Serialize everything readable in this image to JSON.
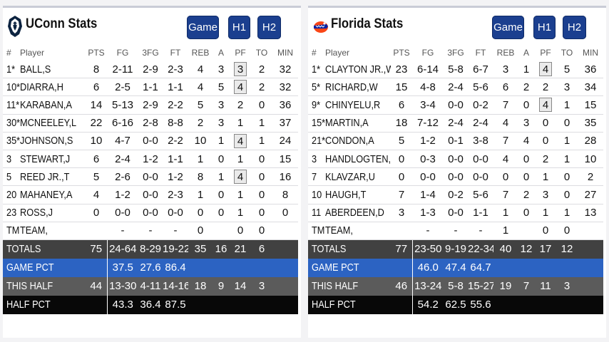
{
  "columns": [
    "#",
    "Player",
    "PTS",
    "FG",
    "3FG",
    "FT",
    "REB",
    "A",
    "PF",
    "TO",
    "MIN"
  ],
  "buttons": {
    "game": "Game",
    "h1": "H1",
    "h2": "H2"
  },
  "colors": {
    "button_blue": "#1b3f8f",
    "game_pct_bar": "#2c63c2",
    "totals_bar": "#414141",
    "this_half_bar": "#5b5b5b",
    "half_pct_bar": "#080808"
  },
  "left": {
    "title": "UConn Stats",
    "logo_icon": "husky-logo-icon",
    "players": [
      {
        "num": "1*",
        "name": "BALL,S",
        "pts": "8",
        "fg": "2-11",
        "tfg": "2-9",
        "ft": "2-3",
        "reb": "4",
        "a": "3",
        "pf": "3",
        "to": "2",
        "min": "32",
        "pf_boxed": true
      },
      {
        "num": "10*",
        "name": "DIARRA,H",
        "pts": "6",
        "fg": "2-5",
        "tfg": "1-1",
        "ft": "1-1",
        "reb": "4",
        "a": "5",
        "pf": "4",
        "to": "2",
        "min": "32",
        "pf_boxed": true
      },
      {
        "num": "11*",
        "name": "KARABAN,A",
        "pts": "14",
        "fg": "5-13",
        "tfg": "2-9",
        "ft": "2-2",
        "reb": "5",
        "a": "3",
        "pf": "2",
        "to": "0",
        "min": "36",
        "pf_boxed": false
      },
      {
        "num": "30*",
        "name": "MCNEELEY,L",
        "pts": "22",
        "fg": "6-16",
        "tfg": "2-8",
        "ft": "8-8",
        "reb": "2",
        "a": "3",
        "pf": "1",
        "to": "1",
        "min": "37",
        "pf_boxed": false
      },
      {
        "num": "35*",
        "name": "JOHNSON,S",
        "pts": "10",
        "fg": "4-7",
        "tfg": "0-0",
        "ft": "2-2",
        "reb": "10",
        "a": "1",
        "pf": "4",
        "to": "1",
        "min": "24",
        "pf_boxed": true
      },
      {
        "num": "3",
        "name": "STEWART,J",
        "pts": "6",
        "fg": "2-4",
        "tfg": "1-2",
        "ft": "1-1",
        "reb": "1",
        "a": "0",
        "pf": "1",
        "to": "0",
        "min": "15",
        "pf_boxed": false
      },
      {
        "num": "5",
        "name": "REED JR.,T",
        "pts": "5",
        "fg": "2-6",
        "tfg": "0-0",
        "ft": "1-2",
        "reb": "8",
        "a": "1",
        "pf": "4",
        "to": "0",
        "min": "16",
        "pf_boxed": true
      },
      {
        "num": "20",
        "name": "MAHANEY,A",
        "pts": "4",
        "fg": "1-2",
        "tfg": "0-0",
        "ft": "2-3",
        "reb": "1",
        "a": "0",
        "pf": "1",
        "to": "0",
        "min": "8",
        "pf_boxed": false
      },
      {
        "num": "23",
        "name": "ROSS,J",
        "pts": "0",
        "fg": "0-0",
        "tfg": "0-0",
        "ft": "0-0",
        "reb": "0",
        "a": "0",
        "pf": "1",
        "to": "0",
        "min": "0",
        "pf_boxed": false
      },
      {
        "num": "TM",
        "name": "TEAM,",
        "pts": "",
        "fg": "-",
        "tfg": "-",
        "ft": "-",
        "reb": "0",
        "a": "",
        "pf": "0",
        "to": "0",
        "min": "",
        "pf_boxed": false
      }
    ],
    "totals": {
      "label": "TOTALS",
      "pts": "75",
      "fg": "24-64",
      "tfg": "8-29",
      "ft": "19-22",
      "reb": "35",
      "a": "16",
      "pf": "21",
      "to": "6",
      "min": ""
    },
    "game_pct": {
      "label": "GAME PCT",
      "fg": "37.5",
      "tfg": "27.6",
      "ft": "86.4"
    },
    "this_half": {
      "label": "THIS HALF",
      "pts": "44",
      "fg": "13-30",
      "tfg": "4-11",
      "ft": "14-16",
      "reb": "18",
      "a": "9",
      "pf": "14",
      "to": "3",
      "min": ""
    },
    "half_pct": {
      "label": "HALF PCT",
      "fg": "43.3",
      "tfg": "36.4",
      "ft": "87.5"
    }
  },
  "right": {
    "title": "Florida Stats",
    "logo_icon": "gator-logo-icon",
    "players": [
      {
        "num": "1*",
        "name": "CLAYTON JR.,W",
        "pts": "23",
        "fg": "6-14",
        "tfg": "5-8",
        "ft": "6-7",
        "reb": "3",
        "a": "1",
        "pf": "4",
        "to": "5",
        "min": "36",
        "pf_boxed": true
      },
      {
        "num": "5*",
        "name": "RICHARD,W",
        "pts": "15",
        "fg": "4-8",
        "tfg": "2-4",
        "ft": "5-6",
        "reb": "6",
        "a": "2",
        "pf": "2",
        "to": "3",
        "min": "34",
        "pf_boxed": false
      },
      {
        "num": "9*",
        "name": "CHINYELU,R",
        "pts": "6",
        "fg": "3-4",
        "tfg": "0-0",
        "ft": "0-2",
        "reb": "7",
        "a": "0",
        "pf": "4",
        "to": "1",
        "min": "15",
        "pf_boxed": true
      },
      {
        "num": "15*",
        "name": "MARTIN,A",
        "pts": "18",
        "fg": "7-12",
        "tfg": "2-4",
        "ft": "2-4",
        "reb": "4",
        "a": "3",
        "pf": "0",
        "to": "0",
        "min": "35",
        "pf_boxed": false
      },
      {
        "num": "21*",
        "name": "CONDON,A",
        "pts": "5",
        "fg": "1-2",
        "tfg": "0-1",
        "ft": "3-8",
        "reb": "7",
        "a": "4",
        "pf": "0",
        "to": "1",
        "min": "28",
        "pf_boxed": false
      },
      {
        "num": "3",
        "name": "HANDLOGTEN,M",
        "pts": "0",
        "fg": "0-3",
        "tfg": "0-0",
        "ft": "0-0",
        "reb": "4",
        "a": "0",
        "pf": "2",
        "to": "1",
        "min": "10",
        "pf_boxed": false
      },
      {
        "num": "7",
        "name": "KLAVZAR,U",
        "pts": "0",
        "fg": "0-0",
        "tfg": "0-0",
        "ft": "0-0",
        "reb": "0",
        "a": "0",
        "pf": "1",
        "to": "0",
        "min": "2",
        "pf_boxed": false
      },
      {
        "num": "10",
        "name": "HAUGH,T",
        "pts": "7",
        "fg": "1-4",
        "tfg": "0-2",
        "ft": "5-6",
        "reb": "7",
        "a": "2",
        "pf": "3",
        "to": "0",
        "min": "27",
        "pf_boxed": false
      },
      {
        "num": "11",
        "name": "ABERDEEN,D",
        "pts": "3",
        "fg": "1-3",
        "tfg": "0-0",
        "ft": "1-1",
        "reb": "1",
        "a": "0",
        "pf": "1",
        "to": "1",
        "min": "13",
        "pf_boxed": false
      },
      {
        "num": "TM",
        "name": "TEAM,",
        "pts": "",
        "fg": "-",
        "tfg": "-",
        "ft": "-",
        "reb": "1",
        "a": "",
        "pf": "0",
        "to": "0",
        "min": "",
        "pf_boxed": false
      }
    ],
    "totals": {
      "label": "TOTALS",
      "pts": "77",
      "fg": "23-50",
      "tfg": "9-19",
      "ft": "22-34",
      "reb": "40",
      "a": "12",
      "pf": "17",
      "to": "12",
      "min": ""
    },
    "game_pct": {
      "label": "GAME PCT",
      "fg": "46.0",
      "tfg": "47.4",
      "ft": "64.7"
    },
    "this_half": {
      "label": "THIS HALF",
      "pts": "46",
      "fg": "13-24",
      "tfg": "5-8",
      "ft": "15-27",
      "reb": "19",
      "a": "7",
      "pf": "11",
      "to": "3",
      "min": ""
    },
    "half_pct": {
      "label": "HALF PCT",
      "fg": "54.2",
      "tfg": "62.5",
      "ft": "55.6"
    }
  }
}
